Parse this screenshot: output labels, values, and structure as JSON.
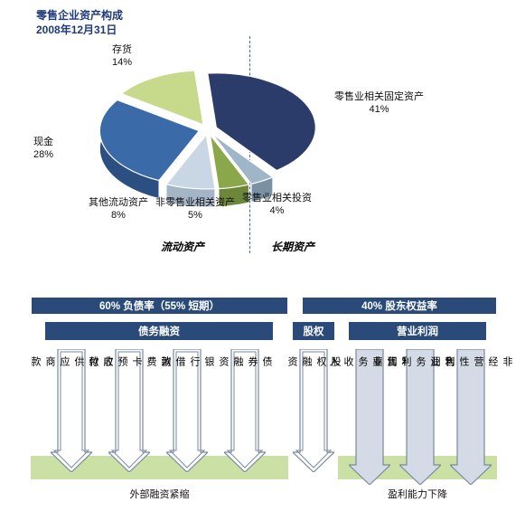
{
  "title_line1": "零售企业资产构成",
  "title_line2": "2008年12月31日",
  "pie": {
    "type": "pie-3d-exploded",
    "slices": [
      {
        "key": "fixed",
        "label": "零售业相关固定资产",
        "pct": "41%",
        "value": 41,
        "color": "#2b3c6b",
        "side_color": "#1f2d52"
      },
      {
        "key": "invest",
        "label": "零售业相关投资",
        "pct": "4%",
        "value": 4,
        "color": "#9fb6c8",
        "side_color": "#7a91a3"
      },
      {
        "key": "nonret",
        "label": "非零售业相关资产",
        "pct": "5%",
        "value": 5,
        "color": "#8aa84a",
        "side_color": "#6c873a"
      },
      {
        "key": "other",
        "label": "其他流动资产",
        "pct": "8%",
        "value": 8,
        "color": "#c9d7e4",
        "side_color": "#a4b5c5"
      },
      {
        "key": "cash",
        "label": "现金",
        "pct": "28%",
        "value": 28,
        "color": "#3a6aa8",
        "side_color": "#2b4f80"
      },
      {
        "key": "inv",
        "label": "存货",
        "pct": "14%",
        "value": 14,
        "color": "#c7d98a",
        "side_color": "#a6b86e"
      }
    ],
    "categories": {
      "left": "流动资产",
      "right": "长期资产"
    },
    "divider_color": "#3a6aa8"
  },
  "bottom": {
    "top_left_header": "60% 负债率（55% 短期）",
    "top_right_header": "40% 股东权益率",
    "sub_headers": {
      "left": "债务融资",
      "mid": "股权",
      "right": "营业利润"
    },
    "arrows_left": [
      {
        "text": "应付供应商款",
        "style": "outline"
      },
      {
        "text": "消费卡预收款",
        "style": "outline"
      },
      {
        "text": "银行借款",
        "style": "outline"
      },
      {
        "text": "债券融资",
        "style": "outline"
      }
    ],
    "arrow_mid": {
      "text": "股权融资",
      "style": "outline"
    },
    "arrows_right": [
      {
        "text": "零售业务收入",
        "style": "filled"
      },
      {
        "text": "零售业务利润率",
        "style": "filled"
      },
      {
        "text": "非经营性利润",
        "style": "filled"
      }
    ],
    "band_left": "外部融资紧缩",
    "band_right": "盈利能力下降",
    "colors": {
      "navy": "#2a4b7a",
      "band": "#cbe0a4",
      "arrow_outline": "#7a8aa0",
      "arrow_fill": "#d4dbe6"
    }
  }
}
